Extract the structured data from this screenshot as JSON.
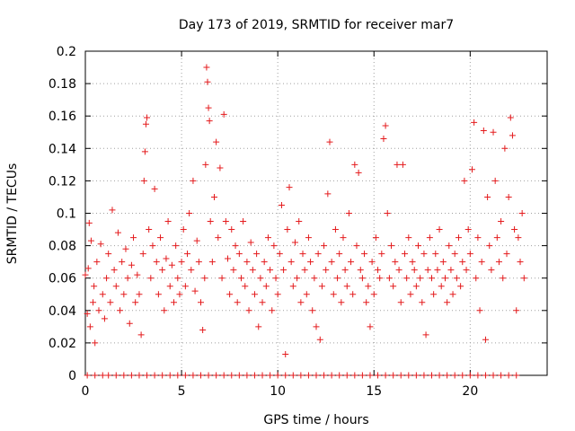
{
  "chart_data": {
    "type": "scatter",
    "title": "Day 173 of 2019, SRMTID for receiver mar7",
    "xlabel": "GPS time / hours",
    "ylabel": "SRMTID / TECUs",
    "xlim": [
      0,
      24
    ],
    "ylim": [
      0,
      0.2
    ],
    "x_ticks": [
      0,
      5,
      10,
      15,
      20
    ],
    "x_tick_labels": [
      "0",
      "5",
      "10",
      "15",
      "20"
    ],
    "y_ticks": [
      0,
      0.02,
      0.04,
      0.06,
      0.08,
      0.1,
      0.12,
      0.14,
      0.16,
      0.18,
      0.2
    ],
    "y_tick_labels": [
      "0",
      "0.02",
      "0.04",
      "0.06",
      "0.08",
      "0.1",
      "0.12",
      "0.14",
      "0.16",
      "0.18",
      "0.2"
    ],
    "grid": true,
    "marker": "plus",
    "color": "#e41a1c",
    "series": [
      {
        "name": "SRMTID",
        "points": [
          [
            0.0,
            0.062
          ],
          [
            0.1,
            0.038
          ],
          [
            0.15,
            0.066
          ],
          [
            0.2,
            0.094
          ],
          [
            0.25,
            0.03
          ],
          [
            0.3,
            0.083
          ],
          [
            0.4,
            0.045
          ],
          [
            0.45,
            0.055
          ],
          [
            0.5,
            0.02
          ],
          [
            0.6,
            0.07
          ],
          [
            0.7,
            0.04
          ],
          [
            0.8,
            0.081
          ],
          [
            0.9,
            0.05
          ],
          [
            1.0,
            0.035
          ],
          [
            1.1,
            0.06
          ],
          [
            1.2,
            0.075
          ],
          [
            1.3,
            0.045
          ],
          [
            1.4,
            0.102
          ],
          [
            1.5,
            0.065
          ],
          [
            1.6,
            0.055
          ],
          [
            1.7,
            0.088
          ],
          [
            1.8,
            0.04
          ],
          [
            1.9,
            0.07
          ],
          [
            2.0,
            0.05
          ],
          [
            2.1,
            0.078
          ],
          [
            2.2,
            0.06
          ],
          [
            2.3,
            0.032
          ],
          [
            2.4,
            0.068
          ],
          [
            2.5,
            0.085
          ],
          [
            2.6,
            0.045
          ],
          [
            2.7,
            0.062
          ],
          [
            2.8,
            0.05
          ],
          [
            2.9,
            0.025
          ],
          [
            3.0,
            0.075
          ],
          [
            3.05,
            0.12
          ],
          [
            3.1,
            0.138
          ],
          [
            3.15,
            0.155
          ],
          [
            3.2,
            0.159
          ],
          [
            3.3,
            0.09
          ],
          [
            3.4,
            0.06
          ],
          [
            3.5,
            0.08
          ],
          [
            3.6,
            0.115
          ],
          [
            3.7,
            0.07
          ],
          [
            3.8,
            0.05
          ],
          [
            3.9,
            0.085
          ],
          [
            4.0,
            0.065
          ],
          [
            4.1,
            0.04
          ],
          [
            4.2,
            0.072
          ],
          [
            4.3,
            0.095
          ],
          [
            4.4,
            0.055
          ],
          [
            4.5,
            0.068
          ],
          [
            4.6,
            0.045
          ],
          [
            4.7,
            0.08
          ],
          [
            4.8,
            0.06
          ],
          [
            4.9,
            0.05
          ],
          [
            5.0,
            0.07
          ],
          [
            5.1,
            0.09
          ],
          [
            5.2,
            0.055
          ],
          [
            5.3,
            0.075
          ],
          [
            5.4,
            0.1
          ],
          [
            5.5,
            0.065
          ],
          [
            5.6,
            0.12
          ],
          [
            5.7,
            0.052
          ],
          [
            5.8,
            0.083
          ],
          [
            5.9,
            0.07
          ],
          [
            6.0,
            0.045
          ],
          [
            6.1,
            0.028
          ],
          [
            6.2,
            0.06
          ],
          [
            6.25,
            0.13
          ],
          [
            6.3,
            0.19
          ],
          [
            6.35,
            0.181
          ],
          [
            6.4,
            0.165
          ],
          [
            6.45,
            0.157
          ],
          [
            6.5,
            0.095
          ],
          [
            6.6,
            0.07
          ],
          [
            6.7,
            0.11
          ],
          [
            6.8,
            0.144
          ],
          [
            6.9,
            0.085
          ],
          [
            7.0,
            0.128
          ],
          [
            7.1,
            0.06
          ],
          [
            7.2,
            0.161
          ],
          [
            7.3,
            0.095
          ],
          [
            7.4,
            0.072
          ],
          [
            7.5,
            0.05
          ],
          [
            7.6,
            0.09
          ],
          [
            7.7,
            0.065
          ],
          [
            7.8,
            0.08
          ],
          [
            7.9,
            0.045
          ],
          [
            8.0,
            0.075
          ],
          [
            8.1,
            0.06
          ],
          [
            8.2,
            0.095
          ],
          [
            8.3,
            0.055
          ],
          [
            8.4,
            0.07
          ],
          [
            8.5,
            0.04
          ],
          [
            8.6,
            0.082
          ],
          [
            8.7,
            0.065
          ],
          [
            8.8,
            0.05
          ],
          [
            8.9,
            0.075
          ],
          [
            9.0,
            0.03
          ],
          [
            9.1,
            0.06
          ],
          [
            9.2,
            0.045
          ],
          [
            9.3,
            0.07
          ],
          [
            9.4,
            0.055
          ],
          [
            9.5,
            0.085
          ],
          [
            9.6,
            0.065
          ],
          [
            9.7,
            0.04
          ],
          [
            9.8,
            0.08
          ],
          [
            9.9,
            0.06
          ],
          [
            10.0,
            0.05
          ],
          [
            10.1,
            0.075
          ],
          [
            10.2,
            0.105
          ],
          [
            10.3,
            0.065
          ],
          [
            10.4,
            0.013
          ],
          [
            10.5,
            0.09
          ],
          [
            10.6,
            0.116
          ],
          [
            10.7,
            0.07
          ],
          [
            10.8,
            0.055
          ],
          [
            10.9,
            0.082
          ],
          [
            11.0,
            0.06
          ],
          [
            11.1,
            0.095
          ],
          [
            11.2,
            0.045
          ],
          [
            11.3,
            0.075
          ],
          [
            11.4,
            0.065
          ],
          [
            11.5,
            0.05
          ],
          [
            11.6,
            0.085
          ],
          [
            11.7,
            0.07
          ],
          [
            11.8,
            0.04
          ],
          [
            11.9,
            0.06
          ],
          [
            12.0,
            0.03
          ],
          [
            12.1,
            0.075
          ],
          [
            12.2,
            0.022
          ],
          [
            12.3,
            0.055
          ],
          [
            12.4,
            0.08
          ],
          [
            12.5,
            0.065
          ],
          [
            12.6,
            0.112
          ],
          [
            12.7,
            0.144
          ],
          [
            12.8,
            0.07
          ],
          [
            12.9,
            0.05
          ],
          [
            13.0,
            0.09
          ],
          [
            13.1,
            0.06
          ],
          [
            13.2,
            0.075
          ],
          [
            13.3,
            0.045
          ],
          [
            13.4,
            0.085
          ],
          [
            13.5,
            0.065
          ],
          [
            13.6,
            0.055
          ],
          [
            13.7,
            0.1
          ],
          [
            13.8,
            0.07
          ],
          [
            13.9,
            0.05
          ],
          [
            14.0,
            0.13
          ],
          [
            14.1,
            0.08
          ],
          [
            14.2,
            0.125
          ],
          [
            14.3,
            0.065
          ],
          [
            14.4,
            0.06
          ],
          [
            14.5,
            0.075
          ],
          [
            14.6,
            0.045
          ],
          [
            14.7,
            0.055
          ],
          [
            14.8,
            0.03
          ],
          [
            14.9,
            0.07
          ],
          [
            15.0,
            0.05
          ],
          [
            15.1,
            0.085
          ],
          [
            15.2,
            0.065
          ],
          [
            15.3,
            0.06
          ],
          [
            15.4,
            0.075
          ],
          [
            15.5,
            0.146
          ],
          [
            15.6,
            0.154
          ],
          [
            15.7,
            0.1
          ],
          [
            15.8,
            0.06
          ],
          [
            15.9,
            0.08
          ],
          [
            16.0,
            0.055
          ],
          [
            16.1,
            0.07
          ],
          [
            16.2,
            0.13
          ],
          [
            16.3,
            0.065
          ],
          [
            16.4,
            0.045
          ],
          [
            16.5,
            0.13
          ],
          [
            16.6,
            0.075
          ],
          [
            16.7,
            0.06
          ],
          [
            16.8,
            0.085
          ],
          [
            16.9,
            0.05
          ],
          [
            17.0,
            0.07
          ],
          [
            17.1,
            0.065
          ],
          [
            17.2,
            0.055
          ],
          [
            17.3,
            0.08
          ],
          [
            17.4,
            0.06
          ],
          [
            17.5,
            0.045
          ],
          [
            17.6,
            0.075
          ],
          [
            17.7,
            0.025
          ],
          [
            17.8,
            0.065
          ],
          [
            17.9,
            0.085
          ],
          [
            18.0,
            0.06
          ],
          [
            18.1,
            0.05
          ],
          [
            18.2,
            0.075
          ],
          [
            18.3,
            0.065
          ],
          [
            18.4,
            0.09
          ],
          [
            18.5,
            0.055
          ],
          [
            18.6,
            0.07
          ],
          [
            18.7,
            0.06
          ],
          [
            18.8,
            0.045
          ],
          [
            18.9,
            0.08
          ],
          [
            19.0,
            0.065
          ],
          [
            19.1,
            0.05
          ],
          [
            19.2,
            0.075
          ],
          [
            19.3,
            0.06
          ],
          [
            19.4,
            0.085
          ],
          [
            19.5,
            0.055
          ],
          [
            19.6,
            0.07
          ],
          [
            19.7,
            0.12
          ],
          [
            19.8,
            0.065
          ],
          [
            19.9,
            0.09
          ],
          [
            20.0,
            0.075
          ],
          [
            20.1,
            0.127
          ],
          [
            20.2,
            0.156
          ],
          [
            20.3,
            0.06
          ],
          [
            20.4,
            0.085
          ],
          [
            20.5,
            0.04
          ],
          [
            20.6,
            0.07
          ],
          [
            20.7,
            0.151
          ],
          [
            20.8,
            0.022
          ],
          [
            20.9,
            0.11
          ],
          [
            21.0,
            0.08
          ],
          [
            21.1,
            0.065
          ],
          [
            21.2,
            0.15
          ],
          [
            21.3,
            0.12
          ],
          [
            21.4,
            0.085
          ],
          [
            21.5,
            0.07
          ],
          [
            21.6,
            0.095
          ],
          [
            21.7,
            0.06
          ],
          [
            21.8,
            0.14
          ],
          [
            21.9,
            0.075
          ],
          [
            22.0,
            0.11
          ],
          [
            22.1,
            0.159
          ],
          [
            22.2,
            0.148
          ],
          [
            22.3,
            0.09
          ],
          [
            22.4,
            0.04
          ],
          [
            22.5,
            0.085
          ],
          [
            22.6,
            0.07
          ],
          [
            22.7,
            0.1
          ],
          [
            22.8,
            0.06
          ]
        ]
      },
      {
        "name": "zero-baseline",
        "points": [
          [
            0.1,
            0
          ],
          [
            0.5,
            0
          ],
          [
            0.9,
            0
          ],
          [
            1.2,
            0
          ],
          [
            1.6,
            0
          ],
          [
            2.0,
            0
          ],
          [
            2.4,
            0
          ],
          [
            2.8,
            0
          ],
          [
            3.2,
            0
          ],
          [
            3.6,
            0
          ],
          [
            4.0,
            0
          ],
          [
            4.4,
            0
          ],
          [
            4.8,
            0
          ],
          [
            5.2,
            0
          ],
          [
            5.6,
            0
          ],
          [
            6.0,
            0
          ],
          [
            6.4,
            0
          ],
          [
            6.8,
            0
          ],
          [
            7.2,
            0
          ],
          [
            7.6,
            0
          ],
          [
            8.0,
            0
          ],
          [
            8.4,
            0
          ],
          [
            8.8,
            0
          ],
          [
            9.2,
            0
          ],
          [
            9.6,
            0
          ],
          [
            10.0,
            0
          ],
          [
            10.4,
            0
          ],
          [
            10.8,
            0
          ],
          [
            11.2,
            0
          ],
          [
            11.6,
            0
          ],
          [
            12.0,
            0
          ],
          [
            12.4,
            0
          ],
          [
            12.8,
            0
          ],
          [
            13.2,
            0
          ],
          [
            13.6,
            0
          ],
          [
            14.0,
            0
          ],
          [
            14.4,
            0
          ],
          [
            14.8,
            0
          ],
          [
            15.2,
            0
          ],
          [
            15.6,
            0
          ],
          [
            16.0,
            0
          ],
          [
            16.4,
            0
          ],
          [
            16.8,
            0
          ],
          [
            17.2,
            0
          ],
          [
            17.6,
            0
          ],
          [
            18.0,
            0
          ],
          [
            18.4,
            0
          ],
          [
            18.8,
            0
          ],
          [
            19.2,
            0
          ],
          [
            19.6,
            0
          ],
          [
            20.0,
            0
          ],
          [
            20.4,
            0
          ],
          [
            20.8,
            0
          ],
          [
            21.2,
            0
          ],
          [
            21.6,
            0
          ],
          [
            22.0,
            0
          ],
          [
            22.4,
            0
          ]
        ]
      }
    ]
  }
}
